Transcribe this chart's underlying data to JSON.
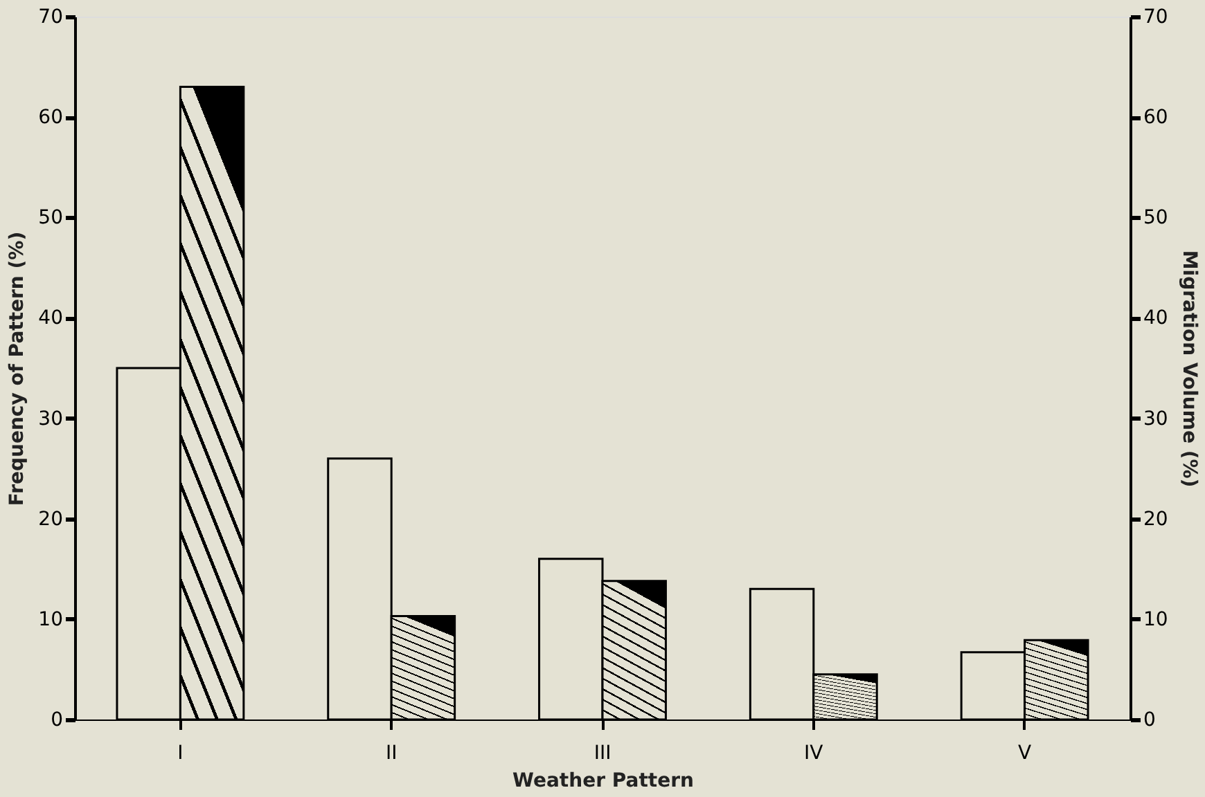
{
  "chart_data": {
    "type": "bar",
    "xlabel": "Weather     Pattern",
    "ylabel": "Frequency of Pattern (%)",
    "y2label": "Migration Volume (%)",
    "categories": [
      "I",
      "II",
      "III",
      "IV",
      "V"
    ],
    "series": [
      {
        "color": "#e4e2d3",
        "values": [
          35,
          26,
          16,
          13,
          6.7
        ]
      },
      {
        "color": "#000000",
        "axis": "y2",
        "values": [
          63,
          10.3,
          13.8,
          4.5,
          7.9
        ]
      }
    ],
    "ylim": [
      0,
      70
    ],
    "yticks": [
      0,
      10,
      20,
      30,
      40,
      50,
      60,
      70
    ],
    "y2lim": [
      0,
      70
    ],
    "y2ticks": [
      0,
      10,
      20,
      30,
      40,
      50,
      60,
      70
    ],
    "grid": false
  }
}
